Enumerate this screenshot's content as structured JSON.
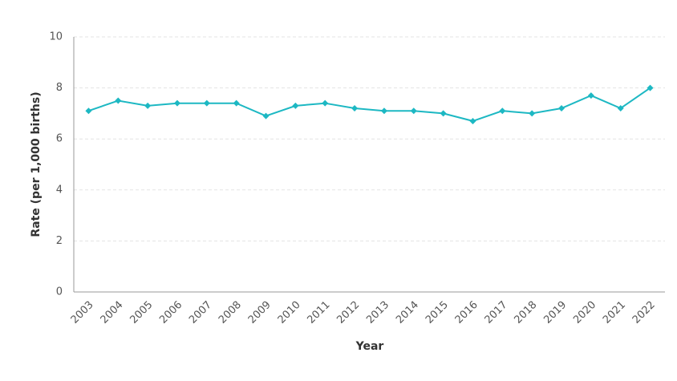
{
  "chart_data": {
    "type": "line",
    "x_label": "Year",
    "y_label": "Rate (per 1,000 births)",
    "categories": [
      "2003",
      "2004",
      "2005",
      "2006",
      "2007",
      "2008",
      "2009",
      "2010",
      "2011",
      "2012",
      "2013",
      "2014",
      "2015",
      "2016",
      "2017",
      "2018",
      "2019",
      "2020",
      "2021",
      "2022"
    ],
    "values": [
      7.1,
      7.5,
      7.3,
      7.4,
      7.4,
      7.4,
      6.9,
      7.3,
      7.4,
      7.2,
      7.1,
      7.1,
      7.0,
      6.7,
      7.1,
      7.0,
      7.2,
      7.7,
      7.2,
      8.0
    ],
    "color": "#1db8c3",
    "ylim": [
      0,
      10
    ],
    "yticks": [
      0,
      2,
      4,
      6,
      8,
      10
    ],
    "grid": true
  }
}
